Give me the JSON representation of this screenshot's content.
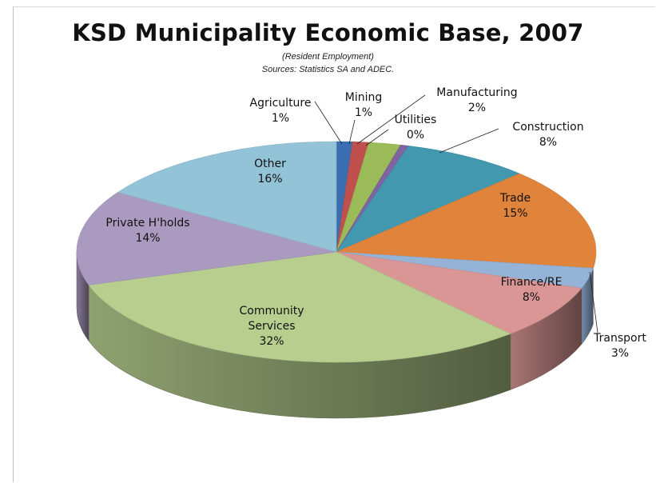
{
  "chart_data": {
    "type": "pie",
    "title": "KSD Municipality  Economic Base, 2007",
    "subtitle_lines": [
      "(Resident Employment)",
      "Sources: Statistics  SA and ADEC."
    ],
    "slices": [
      {
        "label": "Agriculture",
        "value": 1,
        "value_label": "1%",
        "color": "#3b6eb0"
      },
      {
        "label": "Mining",
        "value": 1,
        "value_label": "1%",
        "color": "#c0504d"
      },
      {
        "label": "Manufacturing",
        "value": 2,
        "value_label": "2%",
        "color": "#9bbb59"
      },
      {
        "label": "Utilities",
        "value": 0.5,
        "value_label": "0%",
        "color": "#8064a2"
      },
      {
        "label": "Construction",
        "value": 8,
        "value_label": "8%",
        "color": "#4198af"
      },
      {
        "label": "Trade",
        "value": 15,
        "value_label": "15%",
        "color": "#e0843c"
      },
      {
        "label": "Transport",
        "value": 3,
        "value_label": "3%",
        "color": "#95b3d7"
      },
      {
        "label": "Finance/RE",
        "value": 8,
        "value_label": "8%",
        "color": "#d99694"
      },
      {
        "label": "Community\nServices",
        "value": 32,
        "value_label": "32%",
        "color": "#b7ce8f"
      },
      {
        "label": "Private H'holds",
        "value": 14,
        "value_label": "14%",
        "color": "#ab9ac0"
      },
      {
        "label": "Other",
        "value": 16,
        "value_label": "16%",
        "color": "#93c3d6"
      }
    ]
  }
}
